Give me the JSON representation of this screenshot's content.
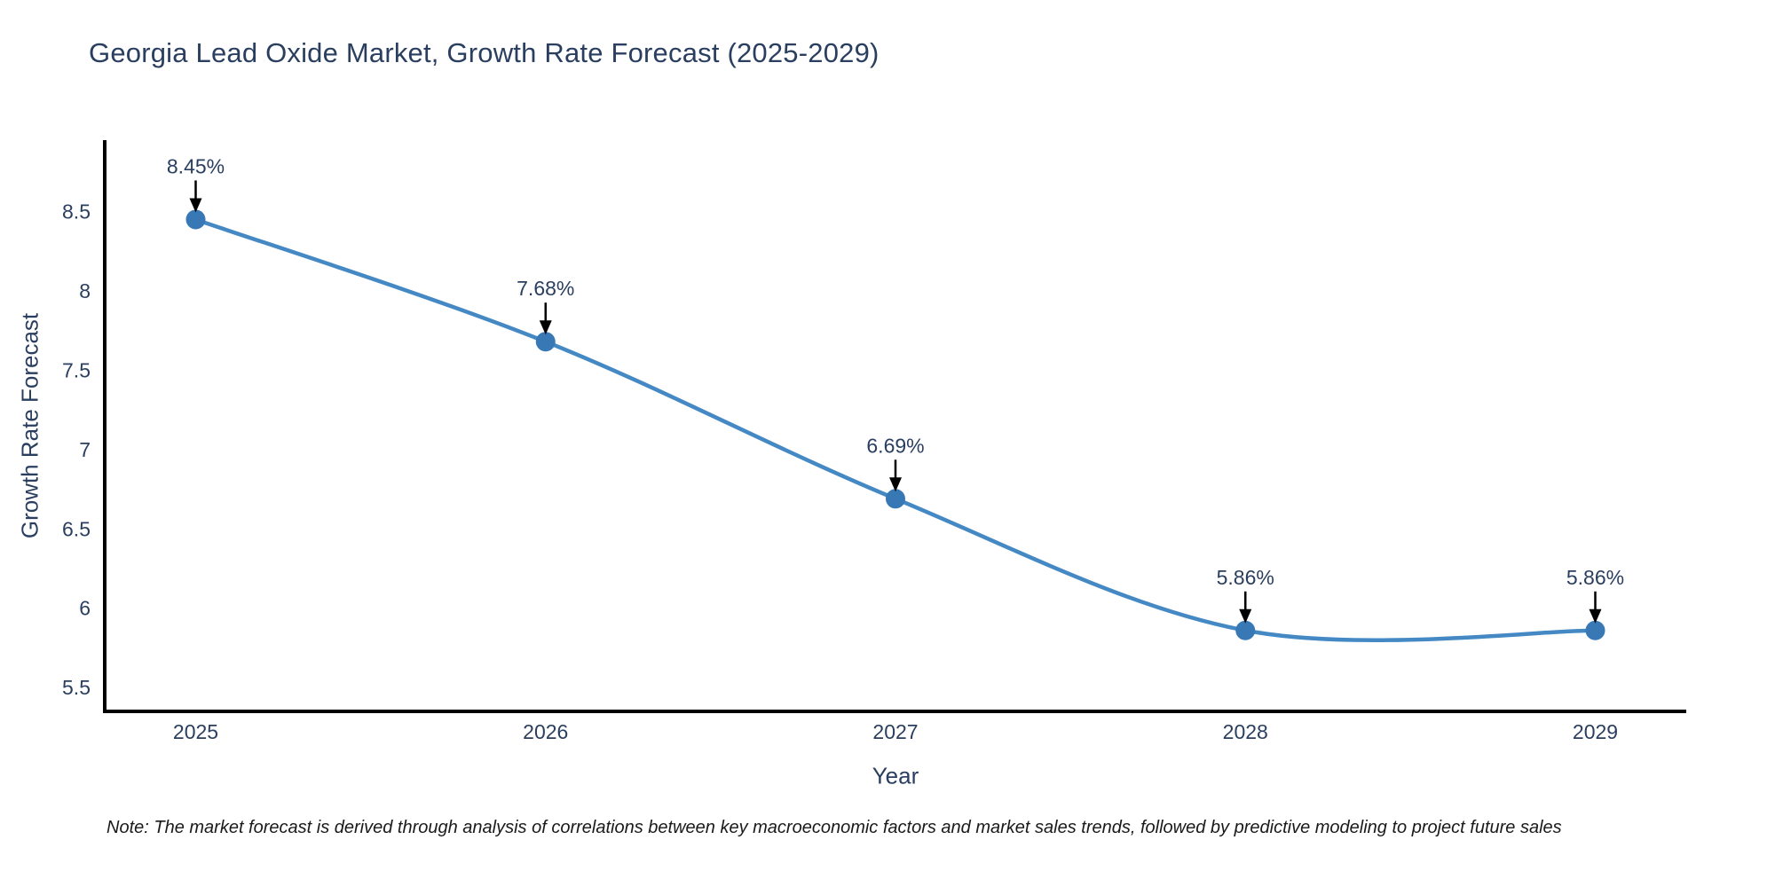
{
  "note": {
    "text": "Note: The market forecast is derived through analysis of correlations between key macroeconomic factors and market sales trends, followed by predictive modeling to project future sales"
  },
  "chart_data": {
    "type": "line",
    "title": "Georgia Lead Oxide Market, Growth Rate Forecast (2025-2029)",
    "xlabel": "Year",
    "ylabel": "Growth Rate Forecast",
    "categories": [
      "2025",
      "2026",
      "2027",
      "2028",
      "2029"
    ],
    "x": [
      2025,
      2026,
      2027,
      2028,
      2029
    ],
    "series": [
      {
        "name": "Growth Rate Forecast",
        "values": [
          8.45,
          7.68,
          6.69,
          5.86,
          5.86
        ]
      }
    ],
    "data_labels": [
      "8.45%",
      "7.68%",
      "6.69%",
      "5.86%",
      "5.86%"
    ],
    "yticks": [
      5.5,
      6,
      6.5,
      7,
      7.5,
      8,
      8.5
    ],
    "ylim": [
      5.35,
      8.95
    ],
    "xlim": [
      2024.74,
      2029.26
    ],
    "grid": false,
    "legend": false,
    "line_shape": "spline",
    "colors": {
      "line": "#4488c4",
      "marker": "#3878b4",
      "axis": "#000000",
      "text": "#2a3f5f",
      "annotation_arrow": "#000000",
      "background": "#ffffff"
    }
  }
}
